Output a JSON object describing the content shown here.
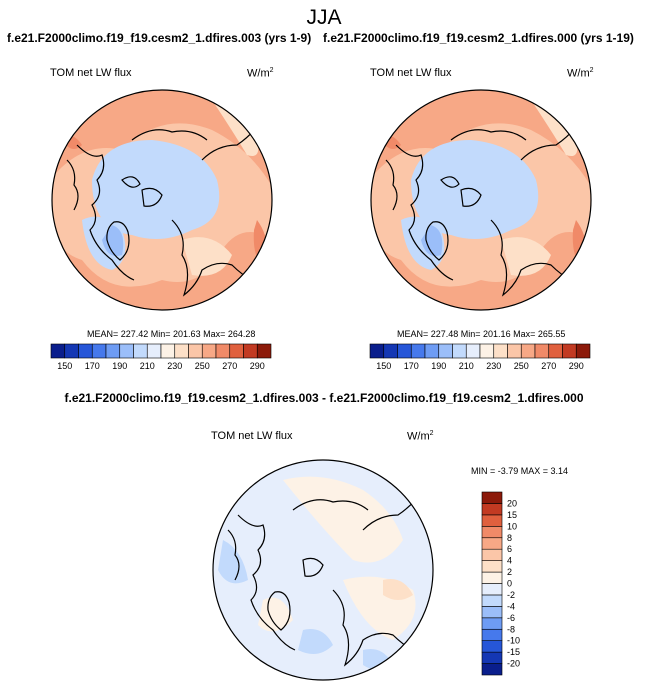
{
  "page": {
    "title": "JJA",
    "case_left": "f.e21.F2000climo.f19_f19.cesm2_1.dfires.003 (yrs 1-9)",
    "case_right": "f.e21.F2000climo.f19_f19.cesm2_1.dfires.000 (yrs 1-19)",
    "diff_title": "f.e21.F2000climo.f19_f19.cesm2_1.dfires.003 - f.e21.F2000climo.f19_f19.cesm2_1.dfires.000"
  },
  "panels": [
    {
      "variable": "TOM net LW flux",
      "units": "W/m",
      "units_sup": "2",
      "stats": "MEAN= 227.42  Min= 201.63  Max= 264.28"
    },
    {
      "variable": "TOM net LW flux",
      "units": "W/m",
      "units_sup": "2",
      "stats": "MEAN= 227.48  Min= 201.16  Max= 265.55"
    },
    {
      "variable": "TOM net LW flux",
      "units": "W/m",
      "units_sup": "2",
      "stats": "MIN =  -3.79 MAX =   3.14"
    }
  ],
  "colorbar_abs": {
    "colors": [
      "#0a1e8c",
      "#1437b4",
      "#2656d8",
      "#4679ec",
      "#6e9cf4",
      "#9bbef9",
      "#c2dafc",
      "#e6eefc",
      "#fdf2e6",
      "#fde0c8",
      "#fbc6a8",
      "#f7a886",
      "#f08a68",
      "#e0603e",
      "#c23a22",
      "#8c1a0a"
    ],
    "labels": [
      "150",
      "170",
      "190",
      "210",
      "230",
      "250",
      "270",
      "290"
    ]
  },
  "colorbar_diff": {
    "colors": [
      "#0a1e8c",
      "#1437b4",
      "#2656d8",
      "#4679ec",
      "#6e9cf4",
      "#9bbef9",
      "#c2dafc",
      "#e6eefc",
      "#fdf2e6",
      "#fde0c8",
      "#fbc6a8",
      "#f7a886",
      "#f08a68",
      "#e0603e",
      "#c23a22",
      "#8c1a0a"
    ],
    "labels": [
      "20",
      "15",
      "10",
      "8",
      "6",
      "4",
      "2",
      "0",
      "-2",
      "-4",
      "-6",
      "-8",
      "-10",
      "-15",
      "-20"
    ]
  }
}
